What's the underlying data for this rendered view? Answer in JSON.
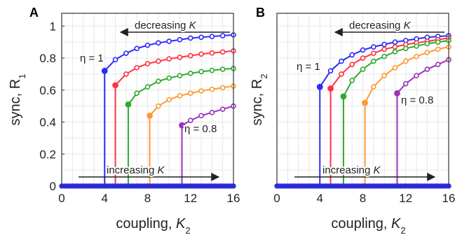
{
  "chart_data": [
    {
      "panel_label": "A",
      "type": "line",
      "xlabel": "coupling, K2",
      "ylabel": "sync, R1",
      "xlim": [
        0,
        16
      ],
      "ylim": [
        0,
        1.08
      ],
      "xticks": [
        "0",
        "4",
        "8",
        "12",
        "16"
      ],
      "yticks": [
        "0",
        "0.2",
        "0.4",
        "0.6",
        "0.8",
        "1"
      ],
      "grid": true,
      "annotations": {
        "decreasing": "decreasing K",
        "increasing": "increasing K",
        "eta_top": "η = 1",
        "eta_bottom": "η = 0.8"
      },
      "series": [
        {
          "color": "#2b2bff",
          "critical_k": 4.0,
          "x": [
            4,
            5,
            6,
            7,
            8,
            9,
            10,
            11,
            12,
            13,
            14,
            15,
            16
          ],
          "values": [
            0.72,
            0.79,
            0.83,
            0.86,
            0.88,
            0.895,
            0.905,
            0.915,
            0.925,
            0.93,
            0.935,
            0.94,
            0.945
          ]
        },
        {
          "color": "#ff3344",
          "critical_k": 5.0,
          "x": [
            5,
            6,
            7,
            8,
            9,
            10,
            11,
            12,
            13,
            14,
            15,
            16
          ],
          "values": [
            0.63,
            0.7,
            0.74,
            0.765,
            0.78,
            0.795,
            0.805,
            0.815,
            0.825,
            0.832,
            0.838,
            0.845
          ]
        },
        {
          "color": "#2eaa2e",
          "critical_k": 6.2,
          "x": [
            6.2,
            7,
            8,
            9,
            10,
            11,
            12,
            13,
            14,
            15,
            16
          ],
          "values": [
            0.51,
            0.58,
            0.62,
            0.655,
            0.675,
            0.69,
            0.705,
            0.715,
            0.723,
            0.73,
            0.735
          ]
        },
        {
          "color": "#ff9933",
          "critical_k": 8.2,
          "x": [
            8.2,
            9,
            10,
            11,
            12,
            13,
            14,
            15,
            16
          ],
          "values": [
            0.44,
            0.5,
            0.54,
            0.565,
            0.58,
            0.595,
            0.605,
            0.615,
            0.625
          ]
        },
        {
          "color": "#9933bb",
          "critical_k": 11.2,
          "x": [
            11.2,
            12,
            13,
            14,
            15,
            16
          ],
          "values": [
            0.38,
            0.41,
            0.44,
            0.46,
            0.48,
            0.5
          ]
        }
      ]
    },
    {
      "panel_label": "B",
      "type": "line",
      "xlabel": "coupling, K2",
      "ylabel": "sync, R2",
      "xlim": [
        0,
        16
      ],
      "ylim": [
        0,
        1.08
      ],
      "xticks": [
        "0",
        "4",
        "8",
        "12",
        "16"
      ],
      "grid": true,
      "annotations": {
        "decreasing": "decreasing K",
        "increasing": "increasing K",
        "eta_top": "η = 1",
        "eta_bottom": "η = 0.8"
      },
      "series": [
        {
          "color": "#2b2bff",
          "critical_k": 4.0,
          "x": [
            4,
            5,
            6,
            7,
            8,
            9,
            10,
            11,
            12,
            13,
            14,
            15,
            16
          ],
          "values": [
            0.62,
            0.72,
            0.78,
            0.82,
            0.85,
            0.87,
            0.885,
            0.9,
            0.91,
            0.92,
            0.93,
            0.935,
            0.94
          ]
        },
        {
          "color": "#ff3344",
          "critical_k": 5.0,
          "x": [
            5,
            6,
            7,
            8,
            9,
            10,
            11,
            12,
            13,
            14,
            15,
            16
          ],
          "values": [
            0.61,
            0.7,
            0.76,
            0.8,
            0.83,
            0.855,
            0.87,
            0.885,
            0.895,
            0.905,
            0.915,
            0.925
          ]
        },
        {
          "color": "#2eaa2e",
          "critical_k": 6.2,
          "x": [
            6.2,
            7,
            8,
            9,
            10,
            11,
            12,
            13,
            14,
            15,
            16
          ],
          "values": [
            0.56,
            0.66,
            0.73,
            0.78,
            0.81,
            0.84,
            0.86,
            0.875,
            0.89,
            0.9,
            0.91
          ]
        },
        {
          "color": "#ff9933",
          "critical_k": 8.2,
          "x": [
            8.2,
            9,
            10,
            11,
            12,
            13,
            14,
            15,
            16
          ],
          "values": [
            0.52,
            0.62,
            0.69,
            0.74,
            0.78,
            0.81,
            0.835,
            0.855,
            0.87
          ]
        },
        {
          "color": "#9933bb",
          "critical_k": 11.2,
          "x": [
            11.2,
            12,
            13,
            14,
            15,
            16
          ],
          "values": [
            0.58,
            0.64,
            0.69,
            0.73,
            0.76,
            0.79
          ]
        }
      ]
    }
  ]
}
